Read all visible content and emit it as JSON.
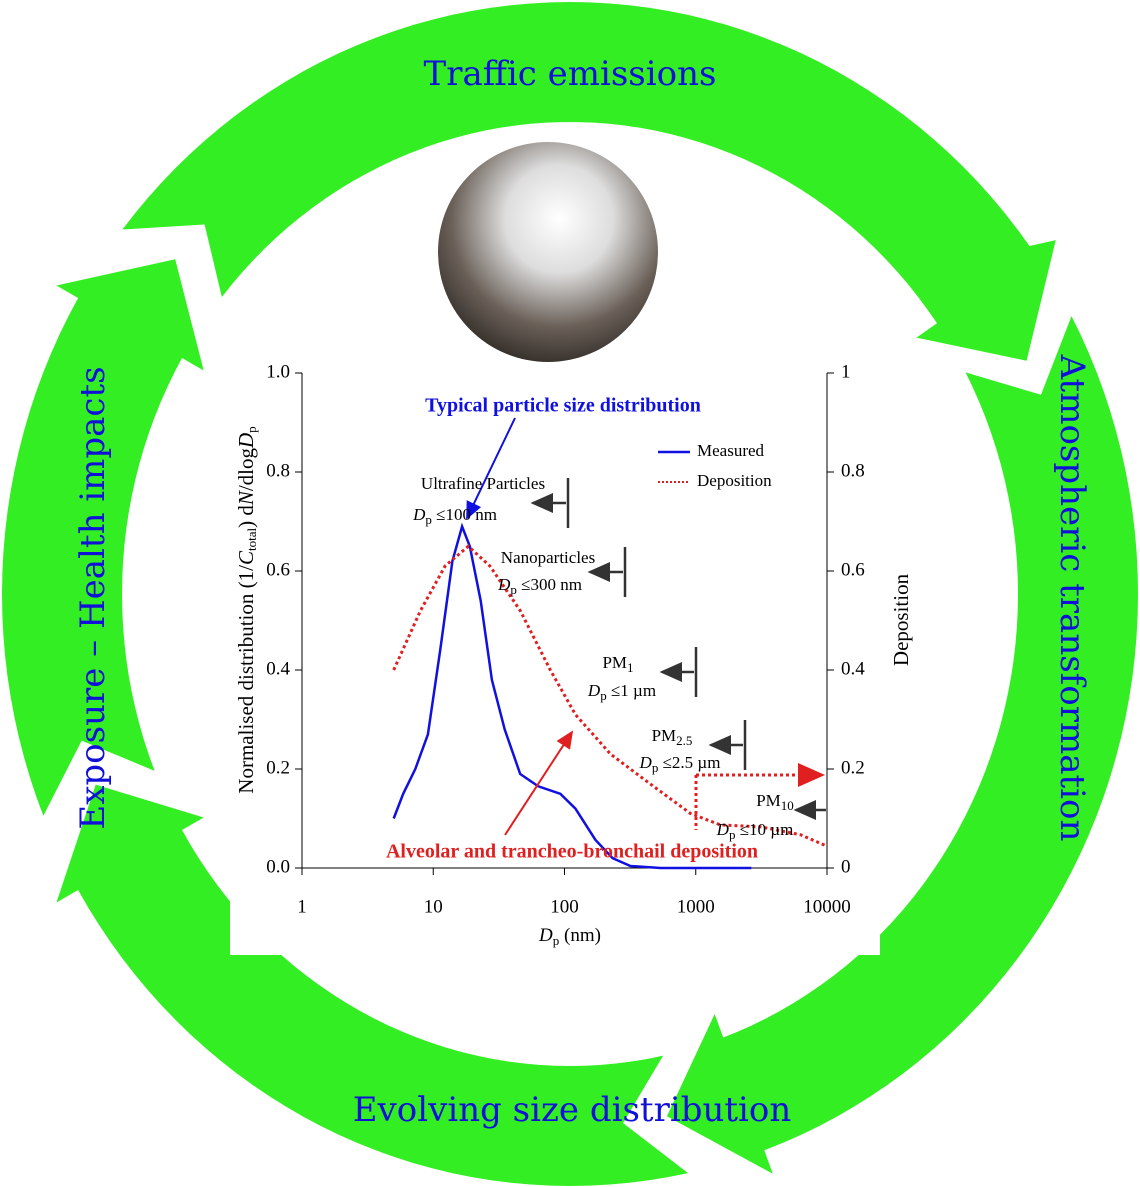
{
  "cycle": {
    "labels": [
      "Traffic emissions",
      "Atmospheric transformation",
      "Evolving size distribution",
      "Exposure – Health impacts"
    ]
  },
  "chart_data": {
    "type": "line",
    "xscale": "log",
    "x_label": [
      "D",
      "p",
      " (nm)"
    ],
    "y_label": [
      "Normalised distribution (1/",
      "C",
      "total",
      ") d",
      "N",
      "/dlog",
      "D",
      "p"
    ],
    "y2_label": "Deposition",
    "xlim": [
      1,
      10000
    ],
    "xticks": [
      1,
      10,
      100,
      1000,
      10000
    ],
    "ylim": [
      0,
      1
    ],
    "yticks": [
      {
        "value": 0,
        "label": "0.0"
      },
      0.2,
      0.4,
      0.6,
      0.8,
      {
        "value": 1,
        "label": "1.0"
      }
    ],
    "y2lim": [
      0,
      1
    ],
    "y2ticks": [
      0,
      0.2,
      0.4,
      0.6,
      0.8,
      1
    ],
    "series": [
      {
        "name": "Measured",
        "color": "#1010e0",
        "x": [
          5,
          5.9,
          7.3,
          9.1,
          11.3,
          14,
          16.6,
          19,
          23,
          28,
          35,
          46,
          63,
          93,
          121,
          172,
          232,
          318,
          540,
          2650
        ],
        "values": [
          0.1,
          0.15,
          0.2,
          0.27,
          0.44,
          0.62,
          0.69,
          0.65,
          0.54,
          0.38,
          0.28,
          0.19,
          0.165,
          0.15,
          0.12,
          0.057,
          0.02,
          0.004,
          0,
          0
        ]
      },
      {
        "name": "Deposition",
        "color": "#e02020",
        "axis": "y2",
        "x": [
          5,
          8,
          12.3,
          18.5,
          27,
          46,
          78,
          121,
          224,
          450,
          912,
          1540,
          3140,
          6300,
          9600
        ],
        "values": [
          0.4,
          0.52,
          0.61,
          0.65,
          0.61,
          0.52,
          0.4,
          0.31,
          0.23,
          0.17,
          0.11,
          0.087,
          0.083,
          0.067,
          0.046
        ]
      }
    ],
    "annotations": {
      "size_distribution": "Typical particle size distribution",
      "deposition": "Alveolar and trancheo-bronchail deposition",
      "ultrafine": {
        "name": "Ultrafine Particles",
        "limit": [
          "D",
          "p",
          " ≤100 nm"
        ]
      },
      "nano": {
        "name": "Nanoparticles",
        "limit": [
          "D",
          "p",
          " ≤300 nm"
        ]
      },
      "pm1": {
        "name": [
          "PM",
          "1"
        ],
        "limit": [
          "D",
          "p",
          " ≤1 µm"
        ]
      },
      "pm25": {
        "name": [
          "PM",
          "2.5"
        ],
        "limit": [
          "D",
          "p",
          " ≤2.5 µm"
        ]
      },
      "pm10": {
        "name": [
          "PM",
          "10"
        ],
        "limit": [
          "D",
          "p",
          " ≤10 µm"
        ]
      }
    }
  }
}
